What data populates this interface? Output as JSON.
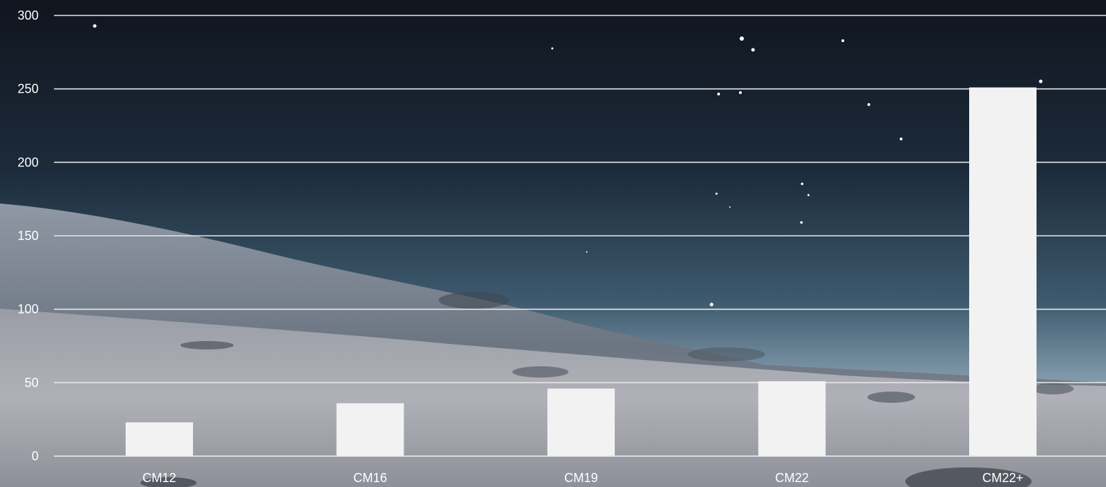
{
  "colors": {
    "sky_top": "#11161f",
    "sky_mid": "#1f3142",
    "horizon": "#7e97a8",
    "ground": "#a9aab2",
    "ground_dark": "#6c6f78",
    "bar": "#f2f2f2",
    "gridline": "#e6e6e6",
    "text": "#ffffff"
  },
  "chart_data": {
    "type": "bar",
    "categories": [
      "CM12",
      "CM16",
      "CM19",
      "CM22",
      "CM22+"
    ],
    "values": [
      23,
      36,
      46,
      51,
      251
    ],
    "ylim": [
      0,
      300
    ],
    "yticks": [
      0,
      50,
      100,
      150,
      200,
      250,
      300
    ],
    "grid": true,
    "title": "",
    "xlabel": "",
    "ylabel": ""
  }
}
